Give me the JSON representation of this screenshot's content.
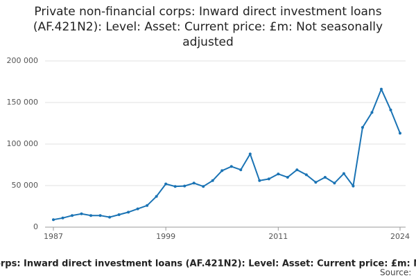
{
  "chart_data": {
    "type": "line",
    "title": "Private non-financial corps: Inward direct investment loans (AF.421N2): Level: Asset: Current price: £m: Not seasonally adjusted",
    "source_label": "Source:",
    "x": [
      1987,
      1988,
      1989,
      1990,
      1991,
      1992,
      1993,
      1994,
      1995,
      1996,
      1997,
      1998,
      1999,
      2000,
      2001,
      2002,
      2003,
      2004,
      2005,
      2006,
      2007,
      2008,
      2009,
      2010,
      2011,
      2012,
      2013,
      2014,
      2015,
      2016,
      2017,
      2018,
      2019,
      2020,
      2021,
      2022,
      2023,
      2024
    ],
    "series": [
      {
        "name": "AF.421N2",
        "color": "#1a73b4",
        "values": [
          9000,
          11000,
          14000,
          16000,
          14000,
          14000,
          12000,
          15000,
          18000,
          22000,
          26000,
          37000,
          52000,
          49000,
          49500,
          53000,
          49000,
          56000,
          68000,
          73000,
          69000,
          88000,
          56000,
          58000,
          64000,
          60000,
          69000,
          63000,
          54000,
          60000,
          53000,
          64500,
          49500,
          120000,
          138000,
          166000,
          141000,
          113000
        ]
      }
    ],
    "xlim": [
      1987,
      2024
    ],
    "xticks": [
      1987,
      1999,
      2011,
      2024
    ],
    "ylim": [
      0,
      200000
    ],
    "yticks": [
      0,
      {
        "value": 50000,
        "label": "50 000"
      },
      {
        "value": 100000,
        "label": "100 000"
      },
      {
        "value": 150000,
        "label": "150 000"
      },
      {
        "value": 200000,
        "label": "200 000"
      }
    ],
    "grid": true
  }
}
